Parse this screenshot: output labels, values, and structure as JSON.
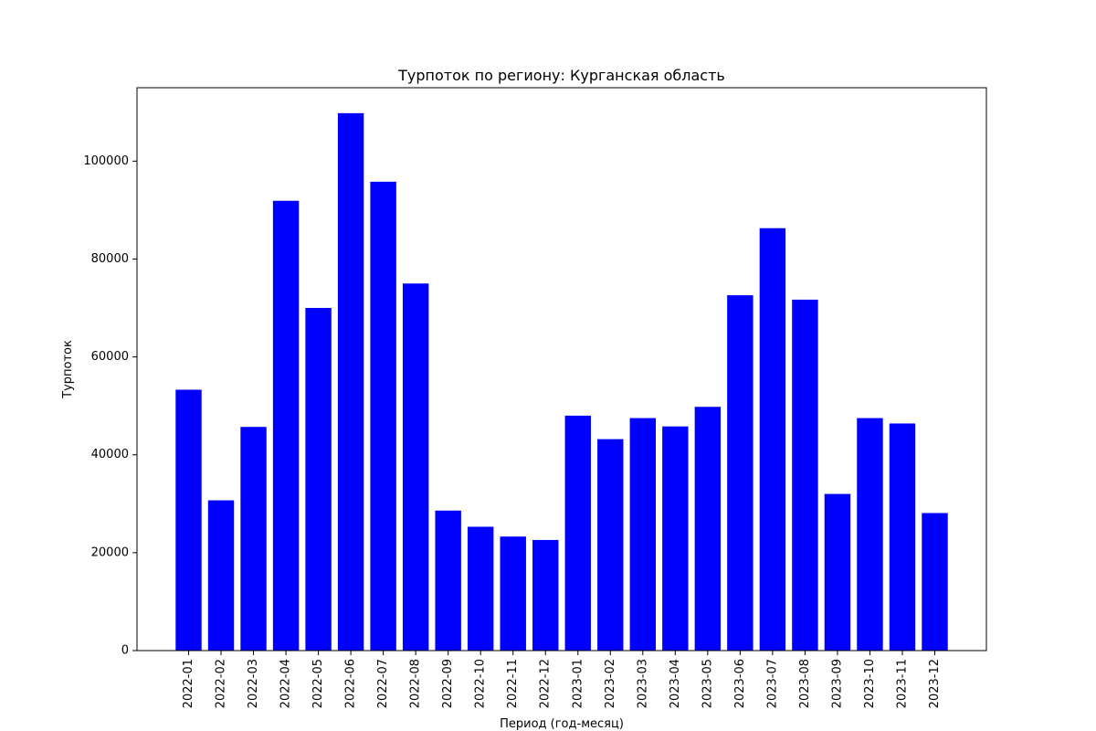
{
  "chart_data": {
    "type": "bar",
    "title": "Турпоток по региону: Курганская область",
    "xlabel": "Период (год-месяц)",
    "ylabel": "Турпоток",
    "categories": [
      "2022-01",
      "2022-02",
      "2022-03",
      "2022-04",
      "2022-05",
      "2022-06",
      "2022-07",
      "2022-08",
      "2022-09",
      "2022-10",
      "2022-11",
      "2022-12",
      "2023-01",
      "2023-02",
      "2023-03",
      "2023-04",
      "2023-05",
      "2023-06",
      "2023-07",
      "2023-08",
      "2023-09",
      "2023-10",
      "2023-11",
      "2023-12"
    ],
    "values": [
      53300,
      30700,
      45700,
      91900,
      70000,
      109800,
      95800,
      75000,
      28600,
      25300,
      23300,
      22600,
      48000,
      43200,
      47500,
      45800,
      49800,
      72600,
      86300,
      71700,
      32000,
      47500,
      46400,
      28100
    ],
    "ylim": [
      0,
      115000
    ],
    "yticks": [
      0,
      20000,
      40000,
      60000,
      80000,
      100000
    ],
    "grid": false,
    "bar_color": "#0000ff"
  }
}
